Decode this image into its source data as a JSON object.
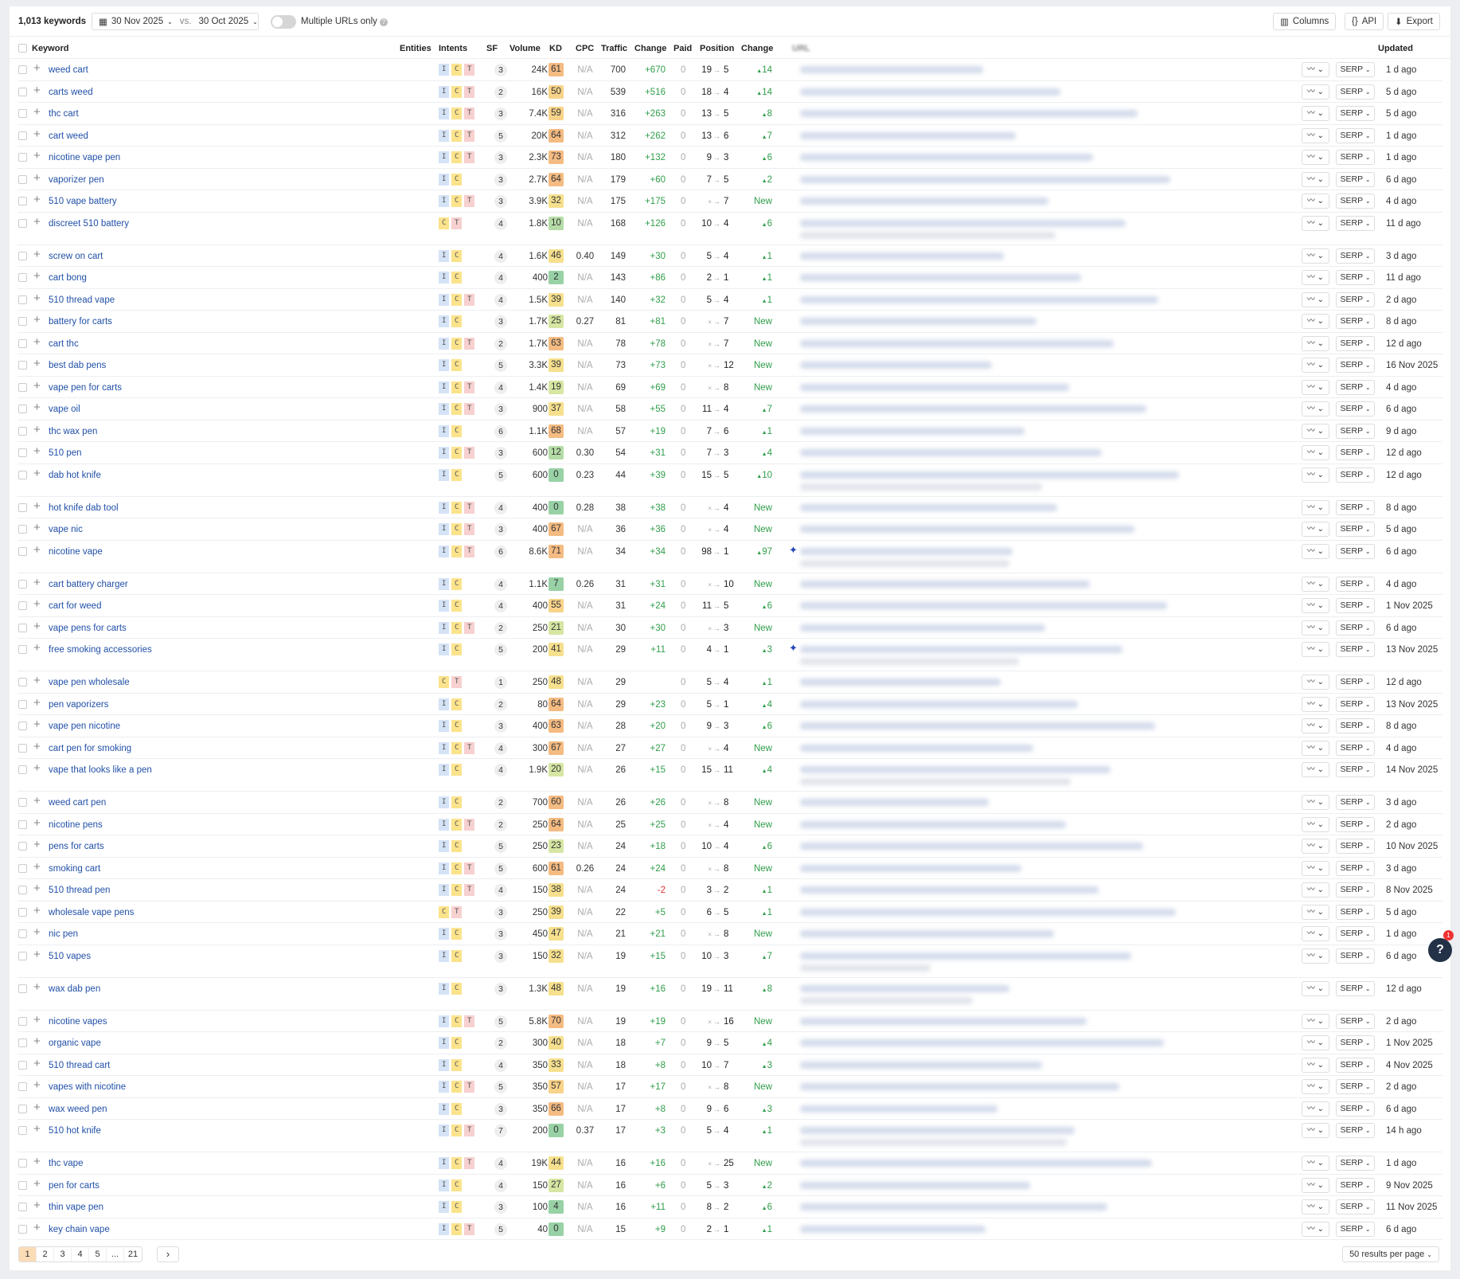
{
  "toolbar": {
    "keyword_count": "1,013 keywords",
    "date_current": "30 Nov 2025",
    "vs": "vs.",
    "date_compare": "30 Oct 2025",
    "multiple_urls_label": "Multiple URLs only",
    "columns": "Columns",
    "api": "API",
    "export": "Export"
  },
  "headers": {
    "keyword": "Keyword",
    "entities": "Entities",
    "intents": "Intents",
    "sf": "SF",
    "volume": "Volume",
    "kd": "KD",
    "cpc": "CPC",
    "traffic": "Traffic",
    "traffic_change": "Change",
    "paid": "Paid",
    "position": "Position",
    "position_change": "Change",
    "url": "URL",
    "updated": "Updated"
  },
  "serp_label": "SERP",
  "colors": {
    "keyword_link": "#2150a8",
    "positive": "#2f9d4a",
    "negative": "#dd3333",
    "intent_I": "#d5e3f6",
    "intent_C": "#fbe38c",
    "intent_T": "#f7d0d0",
    "active_page": "#fadcb7"
  },
  "rows": [
    {
      "kw": "weed cart",
      "intents": "ICT",
      "sf": "3",
      "volume": "24K",
      "kd": 61,
      "cpc": "N/A",
      "traffic": "700",
      "change": "+670",
      "paid": "0",
      "from": "19",
      "to": "5",
      "pos_change": "14",
      "updated": "1 d ago"
    },
    {
      "kw": "carts weed",
      "intents": "ICT",
      "sf": "2",
      "volume": "16K",
      "kd": 50,
      "cpc": "N/A",
      "traffic": "539",
      "change": "+516",
      "paid": "0",
      "from": "18",
      "to": "4",
      "pos_change": "14",
      "updated": "5 d ago"
    },
    {
      "kw": "thc cart",
      "intents": "ICT",
      "sf": "3",
      "volume": "7.4K",
      "kd": 59,
      "cpc": "N/A",
      "traffic": "316",
      "change": "+263",
      "paid": "0",
      "from": "13",
      "to": "5",
      "pos_change": "8",
      "updated": "5 d ago"
    },
    {
      "kw": "cart weed",
      "intents": "ICT",
      "sf": "5",
      "volume": "20K",
      "kd": 64,
      "cpc": "N/A",
      "traffic": "312",
      "change": "+262",
      "paid": "0",
      "from": "13",
      "to": "6",
      "pos_change": "7",
      "updated": "1 d ago"
    },
    {
      "kw": "nicotine vape pen",
      "intents": "ICT",
      "sf": "3",
      "volume": "2.3K",
      "kd": 73,
      "cpc": "N/A",
      "traffic": "180",
      "change": "+132",
      "paid": "0",
      "from": "9",
      "to": "3",
      "pos_change": "6",
      "updated": "1 d ago"
    },
    {
      "kw": "vaporizer pen",
      "intents": "IC",
      "sf": "3",
      "volume": "2.7K",
      "kd": 64,
      "cpc": "N/A",
      "traffic": "179",
      "change": "+60",
      "paid": "0",
      "from": "7",
      "to": "5",
      "pos_change": "2",
      "updated": "6 d ago"
    },
    {
      "kw": "510 vape battery",
      "intents": "ICT",
      "sf": "3",
      "volume": "3.9K",
      "kd": 32,
      "cpc": "N/A",
      "traffic": "175",
      "change": "+175",
      "paid": "0",
      "from": null,
      "to": "7",
      "pos_change": "New",
      "updated": "4 d ago"
    },
    {
      "kw": "discreet 510 battery",
      "intents": "CT",
      "sf": "4",
      "volume": "1.8K",
      "kd": 10,
      "cpc": "N/A",
      "traffic": "168",
      "change": "+126",
      "paid": "0",
      "from": "10",
      "to": "4",
      "pos_change": "6",
      "updated": "11 d ago",
      "url_lines": 2
    },
    {
      "kw": "screw on cart",
      "intents": "IC",
      "sf": "4",
      "volume": "1.6K",
      "kd": 46,
      "cpc": "0.40",
      "traffic": "149",
      "change": "+30",
      "paid": "0",
      "from": "5",
      "to": "4",
      "pos_change": "1",
      "updated": "3 d ago"
    },
    {
      "kw": "cart bong",
      "intents": "IC",
      "sf": "4",
      "volume": "400",
      "kd": 2,
      "cpc": "N/A",
      "traffic": "143",
      "change": "+86",
      "paid": "0",
      "from": "2",
      "to": "1",
      "pos_change": "1",
      "updated": "11 d ago"
    },
    {
      "kw": "510 thread vape",
      "intents": "ICT",
      "sf": "4",
      "volume": "1.5K",
      "kd": 39,
      "cpc": "N/A",
      "traffic": "140",
      "change": "+32",
      "paid": "0",
      "from": "5",
      "to": "4",
      "pos_change": "1",
      "updated": "2 d ago"
    },
    {
      "kw": "battery for carts",
      "intents": "IC",
      "sf": "3",
      "volume": "1.7K",
      "kd": 25,
      "cpc": "0.27",
      "traffic": "81",
      "change": "+81",
      "paid": "0",
      "from": null,
      "to": "7",
      "pos_change": "New",
      "updated": "8 d ago"
    },
    {
      "kw": "cart thc",
      "intents": "ICT",
      "sf": "2",
      "volume": "1.7K",
      "kd": 63,
      "cpc": "N/A",
      "traffic": "78",
      "change": "+78",
      "paid": "0",
      "from": null,
      "to": "7",
      "pos_change": "New",
      "updated": "12 d ago"
    },
    {
      "kw": "best dab pens",
      "intents": "IC",
      "sf": "5",
      "volume": "3.3K",
      "kd": 39,
      "cpc": "N/A",
      "traffic": "73",
      "change": "+73",
      "paid": "0",
      "from": null,
      "to": "12",
      "pos_change": "New",
      "updated": "16 Nov 2025"
    },
    {
      "kw": "vape pen for carts",
      "intents": "ICT",
      "sf": "4",
      "volume": "1.4K",
      "kd": 19,
      "cpc": "N/A",
      "traffic": "69",
      "change": "+69",
      "paid": "0",
      "from": null,
      "to": "8",
      "pos_change": "New",
      "updated": "4 d ago"
    },
    {
      "kw": "vape oil",
      "intents": "ICT",
      "sf": "3",
      "volume": "900",
      "kd": 37,
      "cpc": "N/A",
      "traffic": "58",
      "change": "+55",
      "paid": "0",
      "from": "11",
      "to": "4",
      "pos_change": "7",
      "updated": "6 d ago"
    },
    {
      "kw": "thc wax pen",
      "intents": "IC",
      "sf": "6",
      "volume": "1.1K",
      "kd": 68,
      "cpc": "N/A",
      "traffic": "57",
      "change": "+19",
      "paid": "0",
      "from": "7",
      "to": "6",
      "pos_change": "1",
      "updated": "9 d ago"
    },
    {
      "kw": "510 pen",
      "intents": "ICT",
      "sf": "3",
      "volume": "600",
      "kd": 12,
      "cpc": "0.30",
      "traffic": "54",
      "change": "+31",
      "paid": "0",
      "from": "7",
      "to": "3",
      "pos_change": "4",
      "updated": "12 d ago"
    },
    {
      "kw": "dab hot knife",
      "intents": "IC",
      "sf": "5",
      "volume": "600",
      "kd": 0,
      "cpc": "0.23",
      "traffic": "44",
      "change": "+39",
      "paid": "0",
      "from": "15",
      "to": "5",
      "pos_change": "10",
      "updated": "12 d ago",
      "url_lines": 2
    },
    {
      "kw": "hot knife dab tool",
      "intents": "ICT",
      "sf": "4",
      "volume": "400",
      "kd": 0,
      "cpc": "0.28",
      "traffic": "38",
      "change": "+38",
      "paid": "0",
      "from": null,
      "to": "4",
      "pos_change": "New",
      "updated": "8 d ago"
    },
    {
      "kw": "vape nic",
      "intents": "ICT",
      "sf": "3",
      "volume": "400",
      "kd": 67,
      "cpc": "N/A",
      "traffic": "36",
      "change": "+36",
      "paid": "0",
      "from": null,
      "to": "4",
      "pos_change": "New",
      "updated": "5 d ago"
    },
    {
      "kw": "nicotine vape",
      "intents": "ICT",
      "sf": "6",
      "volume": "8.6K",
      "kd": 71,
      "cpc": "N/A",
      "traffic": "34",
      "change": "+34",
      "paid": "0",
      "from": "98",
      "to": "1",
      "pos_change": "97",
      "updated": "6 d ago",
      "url_lines": 2,
      "marker": true
    },
    {
      "kw": "cart battery charger",
      "intents": "IC",
      "sf": "4",
      "volume": "1.1K",
      "kd": 7,
      "cpc": "0.26",
      "traffic": "31",
      "change": "+31",
      "paid": "0",
      "from": null,
      "to": "10",
      "pos_change": "New",
      "updated": "4 d ago"
    },
    {
      "kw": "cart for weed",
      "intents": "IC",
      "sf": "4",
      "volume": "400",
      "kd": 55,
      "cpc": "N/A",
      "traffic": "31",
      "change": "+24",
      "paid": "0",
      "from": "11",
      "to": "5",
      "pos_change": "6",
      "updated": "1 Nov 2025"
    },
    {
      "kw": "vape pens for carts",
      "intents": "ICT",
      "sf": "2",
      "volume": "250",
      "kd": 21,
      "cpc": "N/A",
      "traffic": "30",
      "change": "+30",
      "paid": "0",
      "from": null,
      "to": "3",
      "pos_change": "New",
      "updated": "6 d ago"
    },
    {
      "kw": "free smoking accessories",
      "intents": "IC",
      "sf": "5",
      "volume": "200",
      "kd": 41,
      "cpc": "N/A",
      "traffic": "29",
      "change": "+11",
      "paid": "0",
      "from": "4",
      "to": "1",
      "pos_change": "3",
      "updated": "13 Nov 2025",
      "url_lines": 2,
      "marker": true
    },
    {
      "kw": "vape pen wholesale",
      "intents": "CT",
      "sf": "1",
      "volume": "250",
      "kd": 48,
      "cpc": "N/A",
      "traffic": "29",
      "change": "",
      "paid": "0",
      "from": "5",
      "to": "4",
      "pos_change": "1",
      "updated": "12 d ago"
    },
    {
      "kw": "pen vaporizers",
      "intents": "IC",
      "sf": "2",
      "volume": "80",
      "kd": 64,
      "cpc": "N/A",
      "traffic": "29",
      "change": "+23",
      "paid": "0",
      "from": "5",
      "to": "1",
      "pos_change": "4",
      "updated": "13 Nov 2025"
    },
    {
      "kw": "vape pen nicotine",
      "intents": "IC",
      "sf": "3",
      "volume": "400",
      "kd": 63,
      "cpc": "N/A",
      "traffic": "28",
      "change": "+20",
      "paid": "0",
      "from": "9",
      "to": "3",
      "pos_change": "6",
      "updated": "8 d ago"
    },
    {
      "kw": "cart pen for smoking",
      "intents": "ICT",
      "sf": "4",
      "volume": "300",
      "kd": 67,
      "cpc": "N/A",
      "traffic": "27",
      "change": "+27",
      "paid": "0",
      "from": null,
      "to": "4",
      "pos_change": "New",
      "updated": "4 d ago"
    },
    {
      "kw": "vape that looks like a pen",
      "intents": "IC",
      "sf": "4",
      "volume": "1.9K",
      "kd": 20,
      "cpc": "N/A",
      "traffic": "26",
      "change": "+15",
      "paid": "0",
      "from": "15",
      "to": "11",
      "pos_change": "4",
      "updated": "14 Nov 2025",
      "url_lines": 2
    },
    {
      "kw": "weed cart pen",
      "intents": "IC",
      "sf": "2",
      "volume": "700",
      "kd": 60,
      "cpc": "N/A",
      "traffic": "26",
      "change": "+26",
      "paid": "0",
      "from": null,
      "to": "8",
      "pos_change": "New",
      "updated": "3 d ago"
    },
    {
      "kw": "nicotine pens",
      "intents": "ICT",
      "sf": "2",
      "volume": "250",
      "kd": 64,
      "cpc": "N/A",
      "traffic": "25",
      "change": "+25",
      "paid": "0",
      "from": null,
      "to": "4",
      "pos_change": "New",
      "updated": "2 d ago"
    },
    {
      "kw": "pens for carts",
      "intents": "IC",
      "sf": "5",
      "volume": "250",
      "kd": 23,
      "cpc": "N/A",
      "traffic": "24",
      "change": "+18",
      "paid": "0",
      "from": "10",
      "to": "4",
      "pos_change": "6",
      "updated": "10 Nov 2025"
    },
    {
      "kw": "smoking cart",
      "intents": "ICT",
      "sf": "5",
      "volume": "600",
      "kd": 61,
      "cpc": "0.26",
      "traffic": "24",
      "change": "+24",
      "paid": "0",
      "from": null,
      "to": "8",
      "pos_change": "New",
      "updated": "3 d ago"
    },
    {
      "kw": "510 thread pen",
      "intents": "ICT",
      "sf": "4",
      "volume": "150",
      "kd": 38,
      "cpc": "N/A",
      "traffic": "24",
      "change": "-2",
      "paid": "0",
      "from": "3",
      "to": "2",
      "pos_change": "1",
      "updated": "8 Nov 2025"
    },
    {
      "kw": "wholesale vape pens",
      "intents": "CT",
      "sf": "3",
      "volume": "250",
      "kd": 39,
      "cpc": "N/A",
      "traffic": "22",
      "change": "+5",
      "paid": "0",
      "from": "6",
      "to": "5",
      "pos_change": "1",
      "updated": "5 d ago"
    },
    {
      "kw": "nic pen",
      "intents": "IC",
      "sf": "3",
      "volume": "450",
      "kd": 47,
      "cpc": "N/A",
      "traffic": "21",
      "change": "+21",
      "paid": "0",
      "from": null,
      "to": "8",
      "pos_change": "New",
      "updated": "1 d ago"
    },
    {
      "kw": "510 vapes",
      "intents": "IC",
      "sf": "3",
      "volume": "150",
      "kd": 32,
      "cpc": "N/A",
      "traffic": "19",
      "change": "+15",
      "paid": "0",
      "from": "10",
      "to": "3",
      "pos_change": "7",
      "updated": "6 d ago",
      "url_lines": 2
    },
    {
      "kw": "wax dab pen",
      "intents": "IC",
      "sf": "3",
      "volume": "1.3K",
      "kd": 48,
      "cpc": "N/A",
      "traffic": "19",
      "change": "+16",
      "paid": "0",
      "from": "19",
      "to": "11",
      "pos_change": "8",
      "updated": "12 d ago",
      "url_lines": 2
    },
    {
      "kw": "nicotine vapes",
      "intents": "ICT",
      "sf": "5",
      "volume": "5.8K",
      "kd": 70,
      "cpc": "N/A",
      "traffic": "19",
      "change": "+19",
      "paid": "0",
      "from": null,
      "to": "16",
      "pos_change": "New",
      "updated": "2 d ago"
    },
    {
      "kw": "organic vape",
      "intents": "IC",
      "sf": "2",
      "volume": "300",
      "kd": 40,
      "cpc": "N/A",
      "traffic": "18",
      "change": "+7",
      "paid": "0",
      "from": "9",
      "to": "5",
      "pos_change": "4",
      "updated": "1 Nov 2025"
    },
    {
      "kw": "510 thread cart",
      "intents": "IC",
      "sf": "4",
      "volume": "350",
      "kd": 33,
      "cpc": "N/A",
      "traffic": "18",
      "change": "+8",
      "paid": "0",
      "from": "10",
      "to": "7",
      "pos_change": "3",
      "updated": "4 Nov 2025"
    },
    {
      "kw": "vapes with nicotine",
      "intents": "ICT",
      "sf": "5",
      "volume": "350",
      "kd": 57,
      "cpc": "N/A",
      "traffic": "17",
      "change": "+17",
      "paid": "0",
      "from": null,
      "to": "8",
      "pos_change": "New",
      "updated": "2 d ago"
    },
    {
      "kw": "wax weed pen",
      "intents": "IC",
      "sf": "3",
      "volume": "350",
      "kd": 66,
      "cpc": "N/A",
      "traffic": "17",
      "change": "+8",
      "paid": "0",
      "from": "9",
      "to": "6",
      "pos_change": "3",
      "updated": "6 d ago"
    },
    {
      "kw": "510 hot knife",
      "intents": "ICT",
      "sf": "7",
      "volume": "200",
      "kd": 0,
      "cpc": "0.37",
      "traffic": "17",
      "change": "+3",
      "paid": "0",
      "from": "5",
      "to": "4",
      "pos_change": "1",
      "updated": "14 h ago",
      "url_lines": 2
    },
    {
      "kw": "thc vape",
      "intents": "ICT",
      "sf": "4",
      "volume": "19K",
      "kd": 44,
      "cpc": "N/A",
      "traffic": "16",
      "change": "+16",
      "paid": "0",
      "from": null,
      "to": "25",
      "pos_change": "New",
      "updated": "1 d ago"
    },
    {
      "kw": "pen for carts",
      "intents": "IC",
      "sf": "4",
      "volume": "150",
      "kd": 27,
      "cpc": "N/A",
      "traffic": "16",
      "change": "+6",
      "paid": "0",
      "from": "5",
      "to": "3",
      "pos_change": "2",
      "updated": "9 Nov 2025"
    },
    {
      "kw": "thin vape pen",
      "intents": "IC",
      "sf": "3",
      "volume": "100",
      "kd": 4,
      "cpc": "N/A",
      "traffic": "16",
      "change": "+11",
      "paid": "0",
      "from": "8",
      "to": "2",
      "pos_change": "6",
      "updated": "11 Nov 2025"
    },
    {
      "kw": "key chain vape",
      "intents": "ICT",
      "sf": "5",
      "volume": "40",
      "kd": 0,
      "cpc": "N/A",
      "traffic": "15",
      "change": "+9",
      "paid": "0",
      "from": "2",
      "to": "1",
      "pos_change": "1",
      "updated": "6 d ago"
    }
  ],
  "pagination": {
    "pages": [
      "1",
      "2",
      "3",
      "4",
      "5",
      "...",
      "21"
    ],
    "current": "1",
    "per_page": "50 results per page"
  },
  "help": {
    "label": "?",
    "badge": "1"
  }
}
